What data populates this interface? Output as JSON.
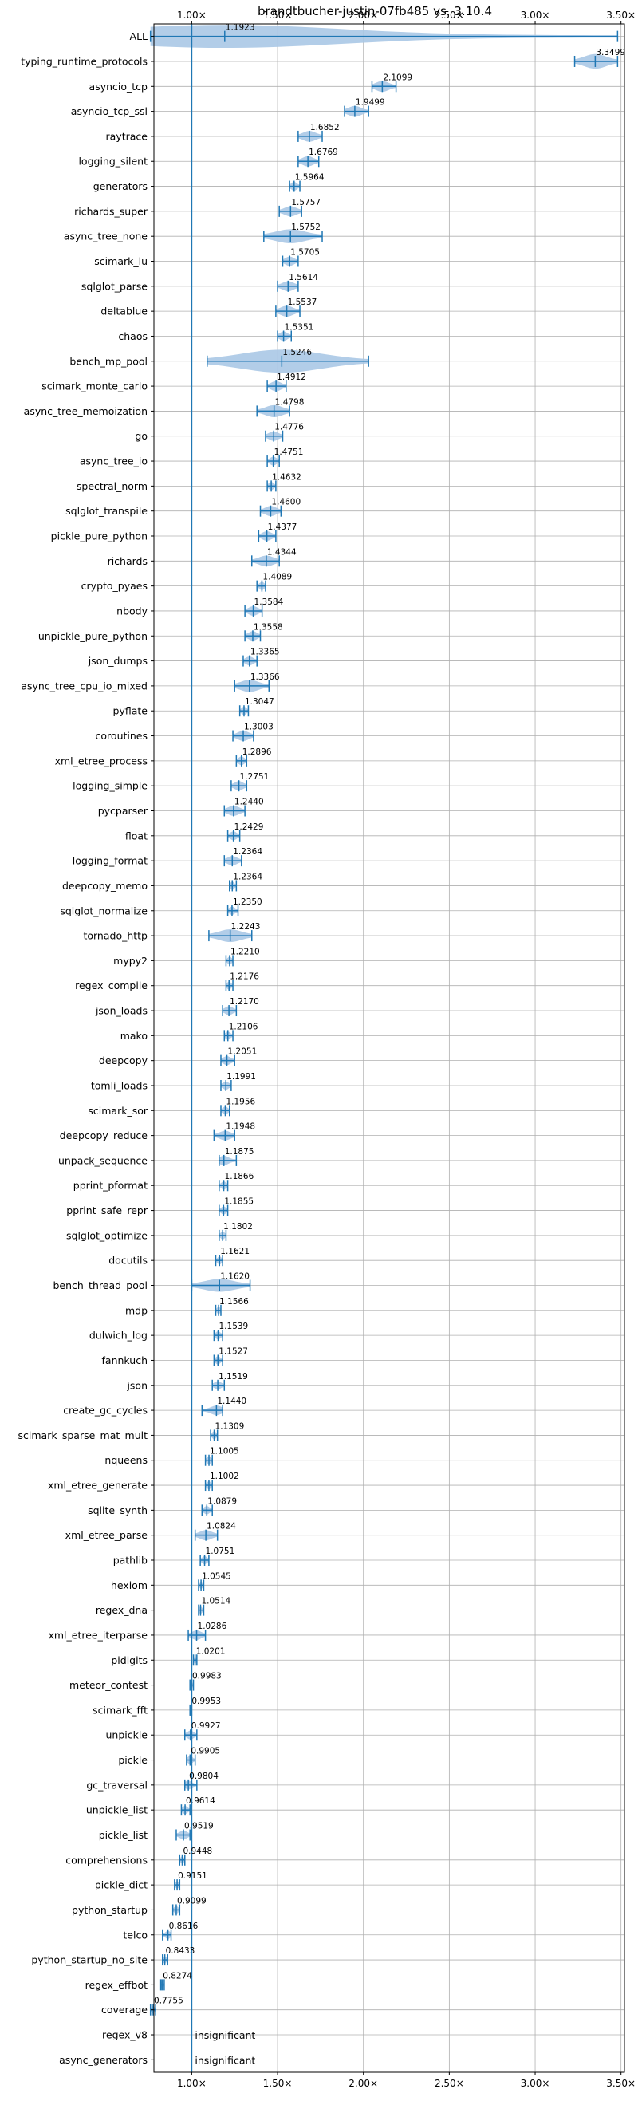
{
  "chart_data": {
    "type": "violin",
    "title": "brandtbucher-justin-07fb485 vs. 3.10.4",
    "xlabel": "",
    "ylabel": "",
    "xlim": [
      0.78,
      3.52
    ],
    "xticks": [
      1.0,
      1.5,
      2.0,
      2.5,
      3.0,
      3.5
    ],
    "xtick_labels": [
      "1.00×",
      "1.50×",
      "2.00×",
      "2.50×",
      "3.00×",
      "3.50×"
    ],
    "grid": true,
    "reference_line": 1.0,
    "colors": {
      "violin": "#aac8e6",
      "lines": "#1f77b4",
      "grid": "#b0b0b0",
      "text": "#000000"
    },
    "insignificant_label": "insignificant",
    "benchmarks": [
      {
        "name": "ALL",
        "label": "1.1923",
        "mean": 1.1923,
        "min": 0.76,
        "max": 3.48,
        "spread": 0.3,
        "significant": true
      },
      {
        "name": "typing_runtime_protocols",
        "label": "3.3499",
        "mean": 3.3499,
        "min": 3.23,
        "max": 3.48,
        "spread": 0.13,
        "significant": true
      },
      {
        "name": "asyncio_tcp",
        "label": "2.1099",
        "mean": 2.1099,
        "min": 2.05,
        "max": 2.19,
        "spread": 0.07,
        "significant": true
      },
      {
        "name": "asyncio_tcp_ssl",
        "label": "1.9499",
        "mean": 1.9499,
        "min": 1.89,
        "max": 2.03,
        "spread": 0.07,
        "significant": true
      },
      {
        "name": "raytrace",
        "label": "1.6852",
        "mean": 1.6852,
        "min": 1.62,
        "max": 1.76,
        "spread": 0.07,
        "significant": true
      },
      {
        "name": "logging_silent",
        "label": "1.6769",
        "mean": 1.6769,
        "min": 1.62,
        "max": 1.74,
        "spread": 0.06,
        "significant": true
      },
      {
        "name": "generators",
        "label": "1.5964",
        "mean": 1.5964,
        "min": 1.57,
        "max": 1.63,
        "spread": 0.04,
        "significant": true
      },
      {
        "name": "richards_super",
        "label": "1.5757",
        "mean": 1.5757,
        "min": 1.51,
        "max": 1.64,
        "spread": 0.06,
        "significant": true
      },
      {
        "name": "async_tree_none",
        "label": "1.5752",
        "mean": 1.5752,
        "min": 1.42,
        "max": 1.76,
        "spread": 0.12,
        "significant": true
      },
      {
        "name": "scimark_lu",
        "label": "1.5705",
        "mean": 1.5705,
        "min": 1.53,
        "max": 1.62,
        "spread": 0.05,
        "significant": true
      },
      {
        "name": "sqlglot_parse",
        "label": "1.5614",
        "mean": 1.5614,
        "min": 1.5,
        "max": 1.62,
        "spread": 0.06,
        "significant": true
      },
      {
        "name": "deltablue",
        "label": "1.5537",
        "mean": 1.5537,
        "min": 1.49,
        "max": 1.63,
        "spread": 0.07,
        "significant": true
      },
      {
        "name": "chaos",
        "label": "1.5351",
        "mean": 1.5351,
        "min": 1.5,
        "max": 1.58,
        "spread": 0.05,
        "significant": true
      },
      {
        "name": "bench_mp_pool",
        "label": "1.5246",
        "mean": 1.5246,
        "min": 1.09,
        "max": 2.03,
        "spread": 0.4,
        "significant": true
      },
      {
        "name": "scimark_monte_carlo",
        "label": "1.4912",
        "mean": 1.4912,
        "min": 1.44,
        "max": 1.55,
        "spread": 0.06,
        "significant": true
      },
      {
        "name": "async_tree_memoization",
        "label": "1.4798",
        "mean": 1.4798,
        "min": 1.38,
        "max": 1.57,
        "spread": 0.09,
        "significant": true
      },
      {
        "name": "go",
        "label": "1.4776",
        "mean": 1.4776,
        "min": 1.43,
        "max": 1.53,
        "spread": 0.05,
        "significant": true
      },
      {
        "name": "async_tree_io",
        "label": "1.4751",
        "mean": 1.4751,
        "min": 1.44,
        "max": 1.51,
        "spread": 0.04,
        "significant": true
      },
      {
        "name": "spectral_norm",
        "label": "1.4632",
        "mean": 1.4632,
        "min": 1.44,
        "max": 1.49,
        "spread": 0.03,
        "significant": true
      },
      {
        "name": "sqlglot_transpile",
        "label": "1.4600",
        "mean": 1.46,
        "min": 1.4,
        "max": 1.52,
        "spread": 0.06,
        "significant": true
      },
      {
        "name": "pickle_pure_python",
        "label": "1.4377",
        "mean": 1.4377,
        "min": 1.39,
        "max": 1.49,
        "spread": 0.05,
        "significant": true
      },
      {
        "name": "richards",
        "label": "1.4344",
        "mean": 1.4344,
        "min": 1.35,
        "max": 1.51,
        "spread": 0.07,
        "significant": true
      },
      {
        "name": "crypto_pyaes",
        "label": "1.4089",
        "mean": 1.4089,
        "min": 1.38,
        "max": 1.43,
        "spread": 0.03,
        "significant": true
      },
      {
        "name": "nbody",
        "label": "1.3584",
        "mean": 1.3584,
        "min": 1.31,
        "max": 1.41,
        "spread": 0.05,
        "significant": true
      },
      {
        "name": "unpickle_pure_python",
        "label": "1.3558",
        "mean": 1.3558,
        "min": 1.31,
        "max": 1.4,
        "spread": 0.05,
        "significant": true
      },
      {
        "name": "json_dumps",
        "label": "1.3365",
        "mean": 1.3365,
        "min": 1.3,
        "max": 1.38,
        "spread": 0.04,
        "significant": true
      },
      {
        "name": "async_tree_cpu_io_mixed",
        "label": "1.3366",
        "mean": 1.3366,
        "min": 1.25,
        "max": 1.45,
        "spread": 0.09,
        "significant": true
      },
      {
        "name": "pyflate",
        "label": "1.3047",
        "mean": 1.3047,
        "min": 1.28,
        "max": 1.33,
        "spread": 0.03,
        "significant": true
      },
      {
        "name": "coroutines",
        "label": "1.3003",
        "mean": 1.3003,
        "min": 1.24,
        "max": 1.36,
        "spread": 0.06,
        "significant": true
      },
      {
        "name": "xml_etree_process",
        "label": "1.2896",
        "mean": 1.2896,
        "min": 1.26,
        "max": 1.32,
        "spread": 0.04,
        "significant": true
      },
      {
        "name": "logging_simple",
        "label": "1.2751",
        "mean": 1.2751,
        "min": 1.23,
        "max": 1.32,
        "spread": 0.05,
        "significant": true
      },
      {
        "name": "pycparser",
        "label": "1.2440",
        "mean": 1.244,
        "min": 1.19,
        "max": 1.31,
        "spread": 0.06,
        "significant": true
      },
      {
        "name": "float",
        "label": "1.2429",
        "mean": 1.2429,
        "min": 1.21,
        "max": 1.28,
        "spread": 0.04,
        "significant": true
      },
      {
        "name": "logging_format",
        "label": "1.2364",
        "mean": 1.2364,
        "min": 1.19,
        "max": 1.29,
        "spread": 0.05,
        "significant": true
      },
      {
        "name": "deepcopy_memo",
        "label": "1.2364",
        "mean": 1.2364,
        "min": 1.22,
        "max": 1.26,
        "spread": 0.03,
        "significant": true
      },
      {
        "name": "sqlglot_normalize",
        "label": "1.2350",
        "mean": 1.235,
        "min": 1.21,
        "max": 1.27,
        "spread": 0.03,
        "significant": true
      },
      {
        "name": "tornado_http",
        "label": "1.2243",
        "mean": 1.2243,
        "min": 1.1,
        "max": 1.35,
        "spread": 0.1,
        "significant": true
      },
      {
        "name": "mypy2",
        "label": "1.2210",
        "mean": 1.221,
        "min": 1.2,
        "max": 1.24,
        "spread": 0.03,
        "significant": true
      },
      {
        "name": "regex_compile",
        "label": "1.2176",
        "mean": 1.2176,
        "min": 1.2,
        "max": 1.24,
        "spread": 0.03,
        "significant": true
      },
      {
        "name": "json_loads",
        "label": "1.2170",
        "mean": 1.217,
        "min": 1.18,
        "max": 1.26,
        "spread": 0.04,
        "significant": true
      },
      {
        "name": "mako",
        "label": "1.2106",
        "mean": 1.2106,
        "min": 1.19,
        "max": 1.24,
        "spread": 0.03,
        "significant": true
      },
      {
        "name": "deepcopy",
        "label": "1.2051",
        "mean": 1.2051,
        "min": 1.17,
        "max": 1.25,
        "spread": 0.04,
        "significant": true
      },
      {
        "name": "tomli_loads",
        "label": "1.1991",
        "mean": 1.1991,
        "min": 1.17,
        "max": 1.23,
        "spread": 0.03,
        "significant": true
      },
      {
        "name": "scimark_sor",
        "label": "1.1956",
        "mean": 1.1956,
        "min": 1.17,
        "max": 1.22,
        "spread": 0.03,
        "significant": true
      },
      {
        "name": "deepcopy_reduce",
        "label": "1.1948",
        "mean": 1.1948,
        "min": 1.13,
        "max": 1.25,
        "spread": 0.05,
        "significant": true
      },
      {
        "name": "unpack_sequence",
        "label": "1.1875",
        "mean": 1.1875,
        "min": 1.16,
        "max": 1.26,
        "spread": 0.05,
        "significant": true
      },
      {
        "name": "pprint_pformat",
        "label": "1.1866",
        "mean": 1.1866,
        "min": 1.16,
        "max": 1.21,
        "spread": 0.03,
        "significant": true
      },
      {
        "name": "pprint_safe_repr",
        "label": "1.1855",
        "mean": 1.1855,
        "min": 1.16,
        "max": 1.21,
        "spread": 0.03,
        "significant": true
      },
      {
        "name": "sqlglot_optimize",
        "label": "1.1802",
        "mean": 1.1802,
        "min": 1.16,
        "max": 1.2,
        "spread": 0.03,
        "significant": true
      },
      {
        "name": "docutils",
        "label": "1.1621",
        "mean": 1.1621,
        "min": 1.14,
        "max": 1.18,
        "spread": 0.03,
        "significant": true
      },
      {
        "name": "bench_thread_pool",
        "label": "1.1620",
        "mean": 1.162,
        "min": 1.0,
        "max": 1.34,
        "spread": 0.1,
        "significant": true
      },
      {
        "name": "mdp",
        "label": "1.1566",
        "mean": 1.1566,
        "min": 1.14,
        "max": 1.17,
        "spread": 0.02,
        "significant": true
      },
      {
        "name": "dulwich_log",
        "label": "1.1539",
        "mean": 1.1539,
        "min": 1.13,
        "max": 1.18,
        "spread": 0.03,
        "significant": true
      },
      {
        "name": "fannkuch",
        "label": "1.1527",
        "mean": 1.1527,
        "min": 1.13,
        "max": 1.18,
        "spread": 0.03,
        "significant": true
      },
      {
        "name": "json",
        "label": "1.1519",
        "mean": 1.1519,
        "min": 1.12,
        "max": 1.19,
        "spread": 0.03,
        "significant": true
      },
      {
        "name": "create_gc_cycles",
        "label": "1.1440",
        "mean": 1.144,
        "min": 1.06,
        "max": 1.18,
        "spread": 0.05,
        "significant": true
      },
      {
        "name": "scimark_sparse_mat_mult",
        "label": "1.1309",
        "mean": 1.1309,
        "min": 1.11,
        "max": 1.15,
        "spread": 0.03,
        "significant": true
      },
      {
        "name": "nqueens",
        "label": "1.1005",
        "mean": 1.1005,
        "min": 1.08,
        "max": 1.12,
        "spread": 0.03,
        "significant": true
      },
      {
        "name": "xml_etree_generate",
        "label": "1.1002",
        "mean": 1.1002,
        "min": 1.08,
        "max": 1.12,
        "spread": 0.03,
        "significant": true
      },
      {
        "name": "sqlite_synth",
        "label": "1.0879",
        "mean": 1.0879,
        "min": 1.06,
        "max": 1.12,
        "spread": 0.03,
        "significant": true
      },
      {
        "name": "xml_etree_parse",
        "label": "1.0824",
        "mean": 1.0824,
        "min": 1.02,
        "max": 1.15,
        "spread": 0.06,
        "significant": true
      },
      {
        "name": "pathlib",
        "label": "1.0751",
        "mean": 1.0751,
        "min": 1.05,
        "max": 1.1,
        "spread": 0.03,
        "significant": true
      },
      {
        "name": "hexiom",
        "label": "1.0545",
        "mean": 1.0545,
        "min": 1.04,
        "max": 1.07,
        "spread": 0.02,
        "significant": true
      },
      {
        "name": "regex_dna",
        "label": "1.0514",
        "mean": 1.0514,
        "min": 1.04,
        "max": 1.07,
        "spread": 0.02,
        "significant": true
      },
      {
        "name": "xml_etree_iterparse",
        "label": "1.0286",
        "mean": 1.0286,
        "min": 0.98,
        "max": 1.08,
        "spread": 0.05,
        "significant": true
      },
      {
        "name": "pidigits",
        "label": "1.0201",
        "mean": 1.0201,
        "min": 1.01,
        "max": 1.03,
        "spread": 0.02,
        "significant": true
      },
      {
        "name": "meteor_contest",
        "label": "0.9983",
        "mean": 0.9983,
        "min": 0.99,
        "max": 1.01,
        "spread": 0.02,
        "significant": true
      },
      {
        "name": "scimark_fft",
        "label": "0.9953",
        "mean": 0.9953,
        "min": 0.99,
        "max": 1.0,
        "spread": 0.02,
        "significant": true
      },
      {
        "name": "unpickle",
        "label": "0.9927",
        "mean": 0.9927,
        "min": 0.96,
        "max": 1.03,
        "spread": 0.04,
        "significant": true
      },
      {
        "name": "pickle",
        "label": "0.9905",
        "mean": 0.9905,
        "min": 0.97,
        "max": 1.02,
        "spread": 0.03,
        "significant": true
      },
      {
        "name": "gc_traversal",
        "label": "0.9804",
        "mean": 0.9804,
        "min": 0.96,
        "max": 1.03,
        "spread": 0.04,
        "significant": true
      },
      {
        "name": "unpickle_list",
        "label": "0.9614",
        "mean": 0.9614,
        "min": 0.94,
        "max": 0.99,
        "spread": 0.03,
        "significant": true
      },
      {
        "name": "pickle_list",
        "label": "0.9519",
        "mean": 0.9519,
        "min": 0.91,
        "max": 0.99,
        "spread": 0.04,
        "significant": true
      },
      {
        "name": "comprehensions",
        "label": "0.9448",
        "mean": 0.9448,
        "min": 0.93,
        "max": 0.96,
        "spread": 0.02,
        "significant": true
      },
      {
        "name": "pickle_dict",
        "label": "0.9151",
        "mean": 0.9151,
        "min": 0.9,
        "max": 0.93,
        "spread": 0.02,
        "significant": true
      },
      {
        "name": "python_startup",
        "label": "0.9099",
        "mean": 0.9099,
        "min": 0.89,
        "max": 0.93,
        "spread": 0.02,
        "significant": true
      },
      {
        "name": "telco",
        "label": "0.8616",
        "mean": 0.8616,
        "min": 0.83,
        "max": 0.88,
        "spread": 0.03,
        "significant": true
      },
      {
        "name": "python_startup_no_site",
        "label": "0.8433",
        "mean": 0.8433,
        "min": 0.83,
        "max": 0.86,
        "spread": 0.02,
        "significant": true
      },
      {
        "name": "regex_effbot",
        "label": "0.8274",
        "mean": 0.8274,
        "min": 0.82,
        "max": 0.84,
        "spread": 0.02,
        "significant": true
      },
      {
        "name": "coverage",
        "label": "0.7755",
        "mean": 0.7755,
        "min": 0.76,
        "max": 0.79,
        "spread": 0.02,
        "significant": true
      },
      {
        "name": "regex_v8",
        "label": "",
        "mean": null,
        "min": null,
        "max": null,
        "spread": null,
        "significant": false
      },
      {
        "name": "async_generators",
        "label": "",
        "mean": null,
        "min": null,
        "max": null,
        "spread": null,
        "significant": false
      }
    ]
  }
}
